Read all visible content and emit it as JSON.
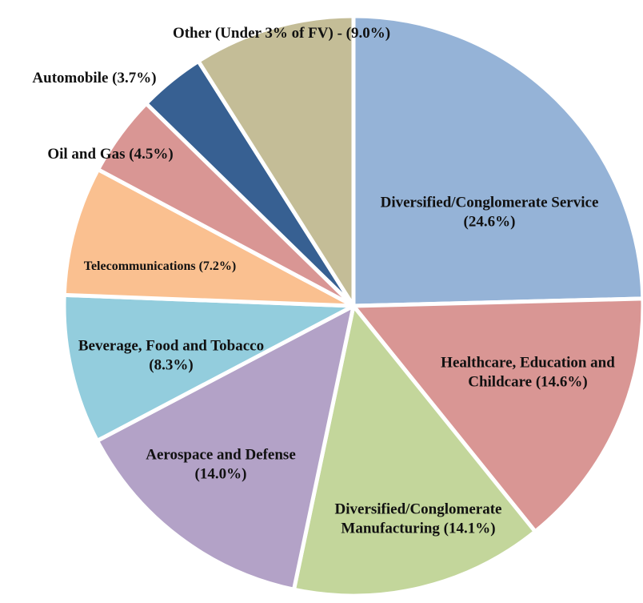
{
  "chart_data": {
    "type": "pie",
    "categories": [
      "Diversified/Conglomerate Service",
      "Healthcare, Education and Childcare",
      "Diversified/Conglomerate Manufacturing",
      "Aerospace and Defense",
      "Beverage, Food and Tobacco",
      "Telecommunications",
      "Oil and Gas",
      "Automobile",
      "Other (Under 3% of FV) -"
    ],
    "values": [
      24.6,
      14.6,
      14.1,
      14.0,
      8.3,
      7.2,
      4.5,
      3.7,
      9.0
    ],
    "value_labels": [
      "(24.6%)",
      "(14.6%)",
      "(14.1%)",
      "(14.0%)",
      "(8.3%)",
      "(7.2%)",
      "(4.5%)",
      "(3.7%)",
      "(9.0%)"
    ],
    "colors": [
      "#95b3d7",
      "#d99694",
      "#c3d69b",
      "#b3a2c7",
      "#93cddd",
      "#fac090",
      "#d99694",
      "#376092",
      "#c4bd97"
    ]
  }
}
